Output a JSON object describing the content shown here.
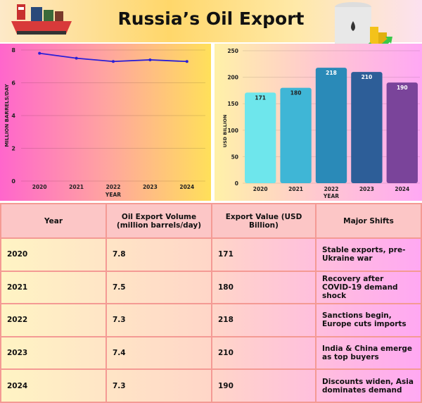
{
  "header": {
    "title": "Russia’s Oil Export",
    "icons": [
      "oil-tanker-ship-icon",
      "oil-barrel-growth-icon"
    ]
  },
  "chart_data": [
    {
      "type": "line",
      "xlabel": "YEAR",
      "ylabel": "MILLION BARRELS/DAY",
      "categories": [
        "2020",
        "2021",
        "2022",
        "2023",
        "2024"
      ],
      "values": [
        7.8,
        7.5,
        7.3,
        7.4,
        7.3
      ],
      "ylim": [
        0,
        8
      ],
      "yticks": [
        0,
        2,
        4,
        6,
        8
      ],
      "grid": true,
      "line_color": "#2a1fd6"
    },
    {
      "type": "bar",
      "xlabel": "YEAR",
      "ylabel": "USD BILLION",
      "categories": [
        "2020",
        "2021",
        "2022",
        "2023",
        "2024"
      ],
      "values": [
        171,
        180,
        218,
        210,
        190
      ],
      "ylim": [
        0,
        250
      ],
      "yticks": [
        0,
        50,
        100,
        150,
        200,
        250
      ],
      "grid": true,
      "colors": [
        "#6ee6ec",
        "#3fb6d6",
        "#2a8ab8",
        "#2d5e98",
        "#7a449a"
      ]
    }
  ],
  "table": {
    "headers": [
      "Year",
      "Oil Export Volume (million barrels/day)",
      "Export Value (USD Billion)",
      "Major Shifts"
    ],
    "rows": [
      [
        "2020",
        "7.8",
        "171",
        "Stable exports, pre-Ukraine war"
      ],
      [
        "2021",
        "7.5",
        "180",
        "Recovery after COVID-19 demand shock"
      ],
      [
        "2022",
        "7.3",
        "218",
        "Sanctions begin, Europe cuts imports"
      ],
      [
        "2023",
        "7.4",
        "210",
        "India & China emerge as top buyers"
      ],
      [
        "2024",
        "7.3",
        "190",
        "Discounts widen, Asia dominates demand"
      ]
    ]
  }
}
